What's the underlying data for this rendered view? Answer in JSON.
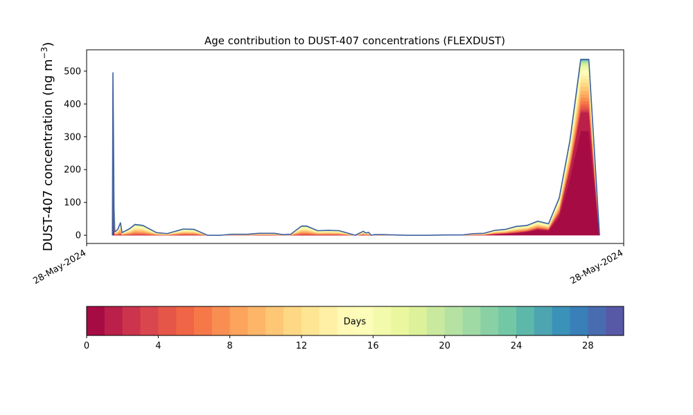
{
  "chart_data": [
    {
      "type": "area",
      "title": "Age contribution to DUST-407 concentrations (FLEXDUST)",
      "ylabel_main": "DUST-407 concentration (ng m",
      "ylabel_sup": "−3",
      "ylabel_close": ")",
      "xlabel": "",
      "x_tick_labels": [
        "28-May-2024",
        "28-May-2024"
      ],
      "y_ticks": [
        0,
        100,
        200,
        300,
        400,
        500
      ],
      "ylim": [
        -25,
        565
      ],
      "xlim": [
        0,
        100
      ],
      "grid": false,
      "x": [
        4.8,
        4.9,
        5.0,
        5.1,
        5.25,
        5.4,
        5.8,
        6.3,
        6.6,
        8.0,
        9.0,
        10.5,
        13.0,
        15.0,
        18.0,
        20.0,
        22.5,
        25.0,
        27.0,
        30.0,
        32.0,
        35.0,
        36.5,
        38.0,
        40.0,
        41.0,
        43.0,
        45.0,
        47.0,
        50.0,
        51.5,
        52.0,
        52.5,
        53.0,
        53.6,
        55.0,
        60.0,
        63.5,
        67.0,
        70.0,
        72.0,
        74.0,
        76.0,
        78.0,
        80.0,
        82.0,
        84.0,
        86.0,
        88.0,
        90.0,
        92.0,
        93.5,
        95.5
      ],
      "total": [
        0,
        495,
        300,
        80,
        10,
        12,
        18,
        38,
        8,
        20,
        33,
        30,
        8,
        5,
        19,
        18,
        0,
        0,
        3,
        3,
        6,
        6,
        2,
        3,
        28,
        28,
        14,
        15,
        14,
        0,
        12,
        7,
        9,
        0,
        2,
        2,
        0,
        0,
        1,
        1,
        5,
        6,
        15,
        18,
        27,
        30,
        43,
        35,
        114,
        290,
        536,
        536,
        0
      ],
      "young_fraction": [
        0,
        0.9,
        0.85,
        0.6,
        0.3,
        0.2,
        0.15,
        0.1,
        0.1,
        0.05,
        0.03,
        0.03,
        0.05,
        0.2,
        0.3,
        0.3,
        0,
        0,
        0.2,
        0.3,
        0.3,
        0.3,
        0.3,
        0.3,
        0.1,
        0.1,
        0.3,
        0.3,
        0.3,
        0,
        0.3,
        0.3,
        0.3,
        0,
        0.3,
        0.3,
        0,
        0,
        0.6,
        0.6,
        0.6,
        0.7,
        0.8,
        0.85,
        0.85,
        0.9,
        0.92,
        0.92,
        0.95,
        0.97,
        0.97,
        0.97,
        0
      ],
      "colors_spectral": [
        "#9e0142",
        "#d53e4f",
        "#f46d43",
        "#fdae61",
        "#fee08b",
        "#ffffbf",
        "#e6f598",
        "#abdda4",
        "#66c2a5",
        "#3288bd",
        "#5e4fa2"
      ],
      "outline_color": "#3e5fa0"
    },
    {
      "type": "colorbar",
      "label": "Days",
      "range": [
        0,
        30
      ],
      "bins": 30,
      "tick_values": [
        0,
        4,
        8,
        12,
        16,
        20,
        24,
        28
      ]
    }
  ]
}
